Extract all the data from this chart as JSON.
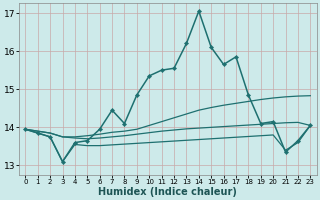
{
  "xlabel": "Humidex (Indice chaleur)",
  "xlim": [
    -0.5,
    23.5
  ],
  "ylim": [
    12.75,
    17.25
  ],
  "yticks": [
    13,
    14,
    15,
    16,
    17
  ],
  "xticks": [
    0,
    1,
    2,
    3,
    4,
    5,
    6,
    7,
    8,
    9,
    10,
    11,
    12,
    13,
    14,
    15,
    16,
    17,
    18,
    19,
    20,
    21,
    22,
    23
  ],
  "background_color": "#cdeaea",
  "grid_color": "#b8d8d8",
  "line_color": "#1e7070",
  "lines": [
    {
      "x": [
        0,
        1,
        2,
        3,
        4,
        5,
        6,
        7,
        8,
        9,
        10,
        11,
        12,
        13,
        14,
        15,
        16,
        17,
        18,
        19,
        20,
        21,
        22,
        23
      ],
      "y": [
        13.95,
        13.85,
        13.75,
        13.1,
        13.6,
        13.65,
        13.95,
        14.45,
        14.1,
        14.85,
        15.35,
        15.5,
        15.55,
        16.2,
        17.05,
        16.1,
        15.65,
        15.85,
        14.85,
        14.1,
        14.15,
        13.35,
        13.65,
        14.05
      ],
      "marker": "D",
      "linewidth": 1.1,
      "markersize": 2.2,
      "has_marker": true
    },
    {
      "x": [
        0,
        1,
        2,
        3,
        4,
        5,
        6,
        7,
        8,
        9,
        10,
        11,
        12,
        13,
        14,
        15,
        16,
        17,
        18,
        19,
        20,
        21,
        22,
        23
      ],
      "y": [
        13.95,
        13.9,
        13.85,
        13.75,
        13.75,
        13.78,
        13.82,
        13.87,
        13.9,
        13.95,
        14.05,
        14.15,
        14.25,
        14.35,
        14.45,
        14.52,
        14.58,
        14.63,
        14.68,
        14.73,
        14.77,
        14.8,
        14.82,
        14.83
      ],
      "marker": null,
      "linewidth": 0.9,
      "has_marker": false
    },
    {
      "x": [
        0,
        1,
        2,
        3,
        4,
        5,
        6,
        7,
        8,
        9,
        10,
        11,
        12,
        13,
        14,
        15,
        16,
        17,
        18,
        19,
        20,
        21,
        22,
        23
      ],
      "y": [
        13.95,
        13.9,
        13.85,
        13.75,
        13.72,
        13.7,
        13.72,
        13.75,
        13.78,
        13.82,
        13.86,
        13.9,
        13.93,
        13.96,
        13.98,
        14.0,
        14.02,
        14.04,
        14.06,
        14.08,
        14.1,
        14.12,
        14.13,
        14.05
      ],
      "marker": null,
      "linewidth": 0.9,
      "has_marker": false
    },
    {
      "x": [
        0,
        1,
        2,
        3,
        4,
        5,
        6,
        7,
        8,
        9,
        10,
        11,
        12,
        13,
        14,
        15,
        16,
        17,
        18,
        19,
        20,
        21,
        22,
        23
      ],
      "y": [
        13.95,
        13.85,
        13.75,
        13.1,
        13.55,
        13.52,
        13.52,
        13.54,
        13.56,
        13.58,
        13.6,
        13.62,
        13.64,
        13.66,
        13.68,
        13.7,
        13.72,
        13.74,
        13.76,
        13.78,
        13.8,
        13.4,
        13.6,
        14.05
      ],
      "marker": null,
      "linewidth": 0.9,
      "has_marker": false
    }
  ]
}
